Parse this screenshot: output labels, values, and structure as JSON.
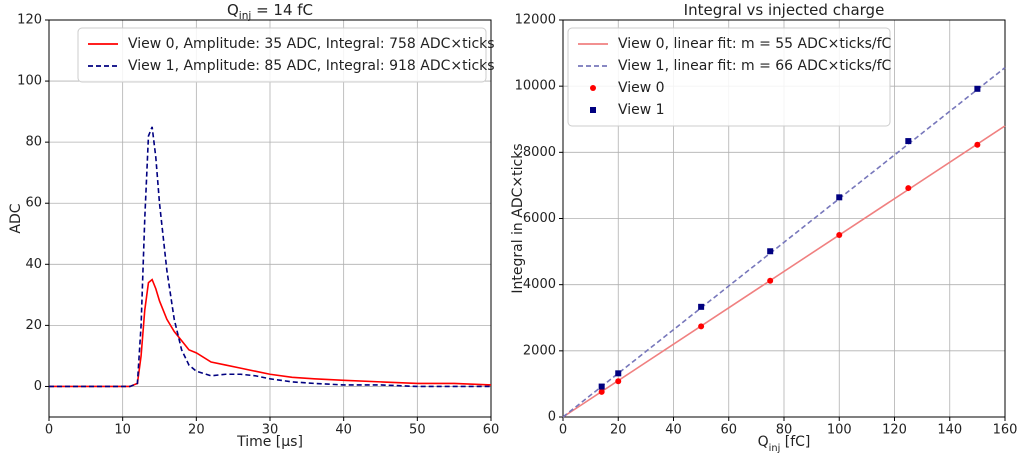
{
  "chart_data": [
    {
      "type": "line",
      "title": [
        "Q",
        "inj",
        " = 14 fC"
      ],
      "x_label": "Time [µs]",
      "y_label": "ADC",
      "xlim": [
        0,
        60
      ],
      "xticks": [
        0,
        10,
        20,
        30,
        40,
        50,
        60
      ],
      "ylim": [
        -10,
        120
      ],
      "yticks": [
        0,
        20,
        40,
        60,
        80,
        100,
        120
      ],
      "grid": true,
      "legend": "upper right",
      "x": [
        0,
        2,
        4,
        6,
        8,
        10,
        11,
        12,
        12.5,
        13,
        13.5,
        14,
        14.5,
        15,
        16,
        17,
        18,
        19,
        20,
        22,
        24,
        26,
        28,
        30,
        33,
        36,
        40,
        45,
        50,
        55,
        60
      ],
      "series": [
        {
          "name": "View 0, Amplitude: 35 ADC, Integral: 758 ADC×ticks",
          "color": "#ff0000",
          "dashed": false,
          "values": [
            0,
            0,
            0,
            0,
            0,
            0,
            0,
            1,
            10,
            25,
            34,
            35,
            32,
            28,
            22,
            18,
            15,
            12,
            11,
            8,
            7,
            6,
            5,
            4,
            3,
            2.5,
            2,
            1.5,
            1,
            1,
            0.5
          ]
        },
        {
          "name": "View 1, Amplitude: 85 ADC, Integral: 918 ADC×ticks",
          "color": "#000080",
          "dashed": true,
          "values": [
            0,
            0,
            0,
            0,
            0,
            0,
            0,
            1,
            20,
            55,
            82,
            85,
            75,
            60,
            38,
            22,
            12,
            7,
            5,
            3.5,
            4,
            4,
            3.5,
            2.5,
            1.5,
            1,
            0.5,
            0.5,
            0,
            0,
            0
          ]
        }
      ]
    },
    {
      "type": "scatter",
      "title": [
        "Integral vs injected charge"
      ],
      "x_label": [
        "Q",
        "inj",
        " [fC]"
      ],
      "y_label": "Integral in ADC×ticks",
      "xlim": [
        0,
        160
      ],
      "xticks": [
        0,
        20,
        40,
        60,
        80,
        100,
        120,
        140,
        160
      ],
      "ylim": [
        0,
        12000
      ],
      "yticks": [
        0,
        2000,
        4000,
        6000,
        8000,
        10000,
        12000
      ],
      "grid": true,
      "legend": "upper left",
      "series": [
        {
          "name": "View 0, linear fit: m = 55 ADC×ticks/fC",
          "color": "#f08080",
          "kind": "line",
          "dashed": false,
          "x": [
            0,
            160
          ],
          "values": [
            0,
            8800
          ]
        },
        {
          "name": "View 1, linear fit: m = 66 ADC×ticks/fC",
          "color": "#7777bb",
          "kind": "line",
          "dashed": true,
          "x": [
            0,
            160
          ],
          "values": [
            0,
            10560
          ]
        },
        {
          "name": "View 0",
          "color": "#ff0000",
          "kind": "circle",
          "x": [
            14,
            20,
            50,
            75,
            100,
            125,
            150
          ],
          "values": [
            760,
            1080,
            2740,
            4120,
            5500,
            6920,
            8230
          ]
        },
        {
          "name": "View 1",
          "color": "#000080",
          "kind": "square",
          "x": [
            14,
            20,
            50,
            75,
            100,
            125,
            150
          ],
          "values": [
            920,
            1320,
            3330,
            5010,
            6640,
            8340,
            9920
          ]
        }
      ]
    }
  ]
}
